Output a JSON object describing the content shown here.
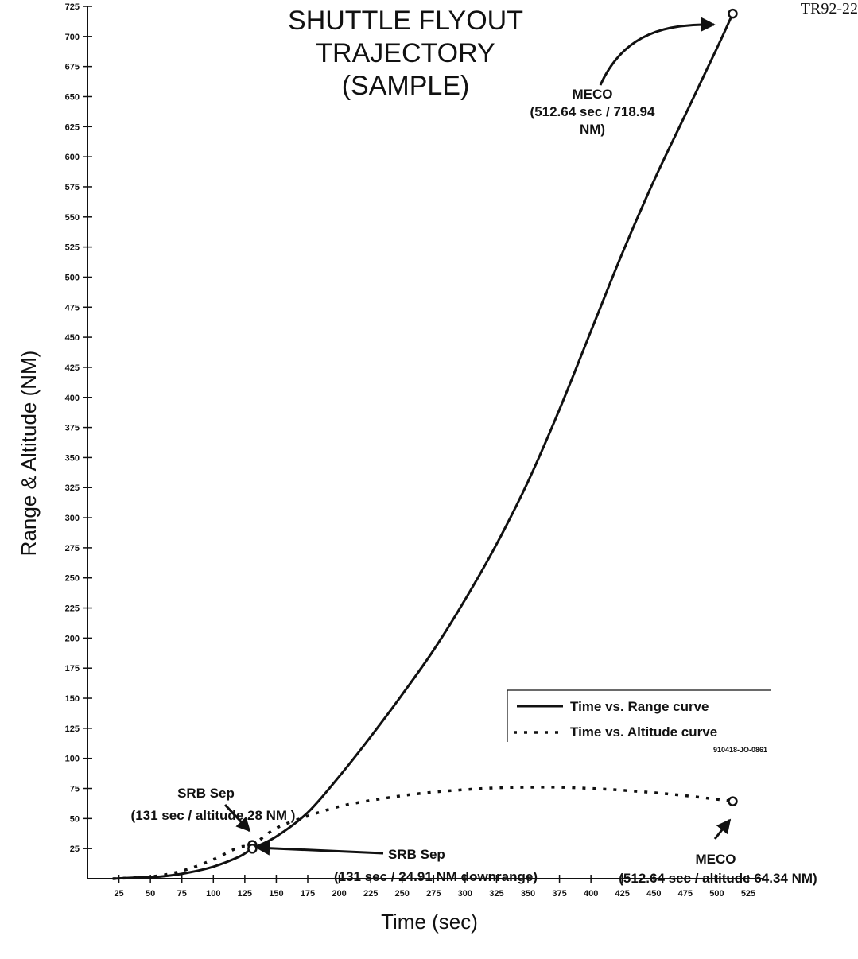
{
  "doc_id": "TR92-22",
  "chart_data": {
    "type": "line",
    "title": [
      "SHUTTLE FLYOUT",
      "TRAJECTORY",
      "(SAMPLE)"
    ],
    "xlabel": "Time (sec)",
    "ylabel": "Range & Altitude (NM)",
    "xlim": [
      0,
      537
    ],
    "ylim": [
      0,
      725
    ],
    "xticks": [
      25,
      50,
      75,
      100,
      125,
      150,
      175,
      200,
      225,
      250,
      275,
      300,
      325,
      350,
      375,
      400,
      425,
      450,
      475,
      500,
      525
    ],
    "xtick_labels": [
      "25",
      "50",
      "75",
      "100",
      "125",
      "150",
      "175",
      "200",
      "225",
      "250",
      "275",
      "300",
      "325",
      "350",
      "375",
      "400",
      "425",
      "450",
      "475",
      "500",
      "525"
    ],
    "yticks": [
      25,
      50,
      75,
      100,
      125,
      150,
      175,
      200,
      225,
      250,
      275,
      300,
      325,
      350,
      375,
      400,
      425,
      450,
      475,
      500,
      525,
      550,
      575,
      600,
      625,
      650,
      675,
      700,
      725
    ],
    "ytick_labels": [
      "25",
      "50",
      "75",
      "100",
      "125",
      "150",
      "175",
      "200",
      "225",
      "250",
      "275",
      "300",
      "325",
      "350",
      "375",
      "400",
      "425",
      "450",
      "475",
      "500",
      "525",
      "550",
      "575",
      "600",
      "625",
      "650",
      "675",
      "700",
      "725"
    ],
    "grid": false,
    "legend_position": "right",
    "series": [
      {
        "name": "Time vs. Range curve",
        "style": "solid",
        "x": [
          20,
          40,
          60,
          80,
          100,
          120,
          131,
          150,
          175,
          200,
          225,
          250,
          275,
          300,
          325,
          350,
          375,
          400,
          425,
          450,
          475,
          500,
          512.64
        ],
        "y": [
          0,
          1,
          2,
          5,
          10,
          18,
          24.91,
          35,
          55,
          85,
          118,
          153,
          190,
          232,
          278,
          330,
          390,
          455,
          520,
          580,
          635,
          690,
          718.94
        ]
      },
      {
        "name": "Time vs. Altitude curve",
        "style": "dotted",
        "x": [
          20,
          40,
          60,
          80,
          100,
          120,
          131,
          150,
          175,
          200,
          225,
          250,
          275,
          300,
          325,
          350,
          375,
          400,
          425,
          450,
          475,
          500,
          512.64
        ],
        "y": [
          0,
          1,
          3,
          8,
          16,
          26,
          28,
          42,
          52,
          60,
          65,
          69,
          72,
          74,
          75.5,
          76,
          76,
          75,
          73.5,
          71.5,
          69,
          66,
          64.34
        ]
      }
    ],
    "annotations": {
      "meco_range": {
        "label": "MECO",
        "detail1": "(512.64 sec / 718.94",
        "detail2": "NM)",
        "point": [
          512.64,
          718.94
        ]
      },
      "srb_alt": {
        "label": "SRB Sep",
        "detail": "(131 sec / altitude 28 NM )",
        "point": [
          131,
          28
        ]
      },
      "srb_range": {
        "label": "SRB Sep",
        "detail": "(131 sec / 24.91 NM downrange)",
        "point": [
          131,
          24.91
        ]
      },
      "meco_alt": {
        "label": "MECO",
        "detail": "(512.64 sec / altitude 64.34 NM)",
        "point": [
          512.64,
          64.34
        ]
      }
    },
    "legend": {
      "range_label": "Time vs. Range curve",
      "altitude_label": "Time vs. Altitude curve",
      "code": "910418-JO-0861"
    }
  }
}
